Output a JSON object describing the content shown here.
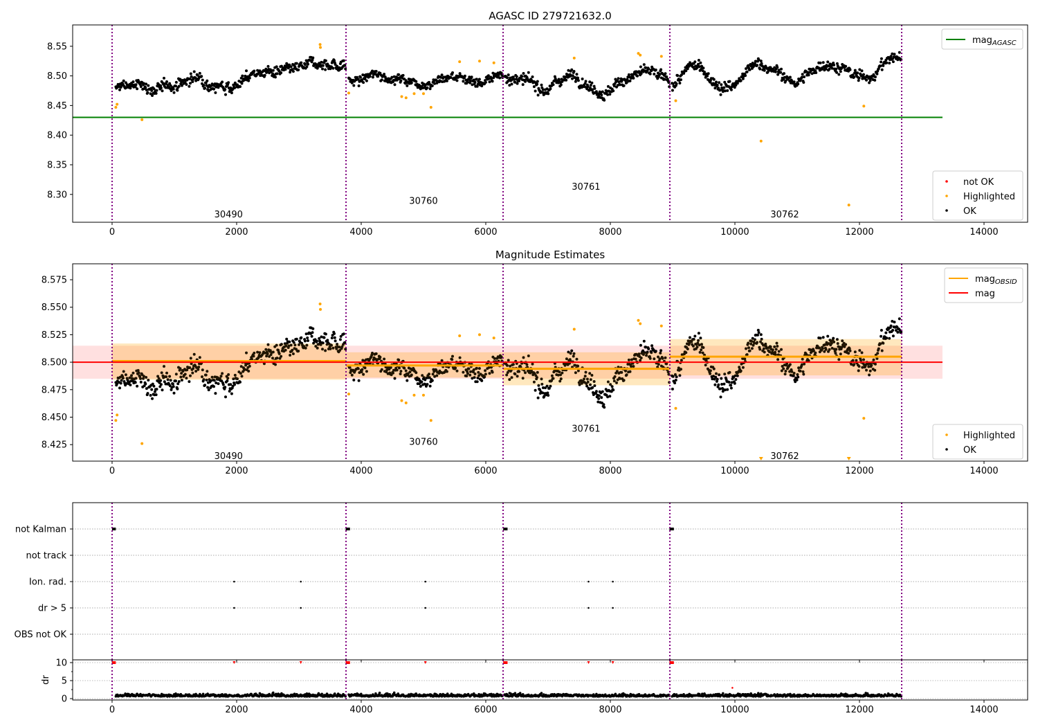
{
  "chart_data": [
    {
      "type": "scatter",
      "title": "AGASC ID 279721632.0",
      "xlim": [
        -633,
        14700
      ],
      "ylim": [
        8.253,
        8.586
      ],
      "xticks": [
        0,
        2000,
        4000,
        6000,
        8000,
        10000,
        12000,
        14000
      ],
      "yticks": [
        8.3,
        8.35,
        8.4,
        8.45,
        8.5,
        8.55
      ],
      "hlines": [
        {
          "name": "mag_AGASC",
          "y": 8.43,
          "x_end": 13333,
          "color": "#008000"
        }
      ],
      "legend_upper": [
        {
          "label": "mag",
          "sub": "AGASC",
          "color": "#008000",
          "kind": "line"
        }
      ],
      "legend_lower": [
        {
          "label": "not OK",
          "color": "#ff0000",
          "kind": "dot"
        },
        {
          "label": "Highlighted",
          "color": "#ffa500",
          "kind": "dot"
        },
        {
          "label": "OK",
          "color": "#000000",
          "kind": "dot"
        }
      ],
      "obsid_labels": [
        {
          "text": "30490",
          "x": 1870,
          "y": 8.267
        },
        {
          "text": "30760",
          "x": 5000,
          "y": 8.29
        },
        {
          "text": "30761",
          "x": 7610,
          "y": 8.314
        },
        {
          "text": "30762",
          "x": 10800,
          "y": 8.267
        }
      ]
    },
    {
      "type": "scatter",
      "title": "Magnitude Estimates",
      "xlim": [
        -633,
        14700
      ],
      "ylim": [
        8.41,
        8.5895
      ],
      "xticks": [
        0,
        2000,
        4000,
        6000,
        8000,
        10000,
        12000,
        14000
      ],
      "yticks": [
        8.425,
        8.45,
        8.475,
        8.5,
        8.525,
        8.55,
        8.575
      ],
      "mag": {
        "value": 8.5,
        "band": [
          8.485,
          8.515
        ],
        "x_end": 13333,
        "color": "#ff0000"
      },
      "mag_obsid": [
        {
          "x": [
            0,
            3756
          ],
          "value": 8.501,
          "band": [
            8.484,
            8.517
          ]
        },
        {
          "x": [
            3756,
            6278
          ],
          "value": 8.497,
          "band": [
            8.486,
            8.509
          ]
        },
        {
          "x": [
            6278,
            8956
          ],
          "value": 8.494,
          "band": [
            8.479,
            8.509
          ]
        },
        {
          "x": [
            8956,
            12678
          ],
          "value": 8.505,
          "band": [
            8.488,
            8.521
          ]
        }
      ],
      "legend_upper": [
        {
          "label": "mag",
          "sub": "OBSID",
          "color": "#ffa500",
          "kind": "line"
        },
        {
          "label": "mag",
          "sub": "",
          "color": "#ff0000",
          "kind": "line"
        }
      ],
      "legend_lower": [
        {
          "label": "Highlighted",
          "color": "#ffa500",
          "kind": "dot"
        },
        {
          "label": "OK",
          "color": "#000000",
          "kind": "dot"
        }
      ],
      "obsid_labels": [
        {
          "text": "30490",
          "x": 1870,
          "y": 8.415
        },
        {
          "text": "30760",
          "x": 5000,
          "y": 8.428
        },
        {
          "text": "30761",
          "x": 7610,
          "y": 8.44
        },
        {
          "text": "30762",
          "x": 10800,
          "y": 8.415
        }
      ]
    },
    {
      "type": "scatter",
      "title": "",
      "flag_rows": [
        "not Kalman",
        "not track",
        "Ion. rad.",
        "dr > 5",
        "OBS not OK"
      ],
      "flags": {
        "not Kalman": [
          [
            0,
            60
          ],
          [
            3750,
            3820
          ],
          [
            6280,
            6350
          ],
          [
            8950,
            9020
          ]
        ],
        "Ion. rad.": [
          1960,
          3030,
          5030,
          7650,
          8040
        ],
        "dr > 5": [
          1960,
          3030,
          5030,
          7650,
          8040
        ]
      },
      "xlim": [
        -633,
        14700
      ],
      "xticks": [
        0,
        2000,
        4000,
        6000,
        8000,
        10000,
        12000,
        14000
      ]
    },
    {
      "type": "scatter",
      "ylabel": "dr",
      "ylim": [
        -0.38,
        10.77
      ],
      "yticks": [
        0,
        5,
        10
      ],
      "xlim": [
        -633,
        14700
      ],
      "xticks": [
        0,
        2000,
        4000,
        6000,
        8000,
        10000,
        12000,
        14000
      ],
      "dr_typical": [
        0,
        2
      ],
      "dr_clipped_value": 10,
      "dr_red_points": [
        [
          9960,
          3
        ]
      ]
    }
  ],
  "obsid_boundaries": [
    0,
    3756,
    6278,
    8956,
    12678
  ],
  "ok_series": {
    "segments": [
      {
        "x": [
          60,
          3756
        ],
        "start": 8.475,
        "end": 8.518,
        "amp": 0.006,
        "noise": 0.007
      },
      {
        "x": [
          3800,
          6278
        ],
        "start": 8.495,
        "end": 8.5,
        "amp": 0.004,
        "noise": 0.006
      },
      {
        "x": [
          6300,
          8956
        ],
        "start": 8.488,
        "end": 8.497,
        "amp": 0.012,
        "noise": 0.007
      },
      {
        "x": [
          8990,
          12678
        ],
        "start": 8.492,
        "end": 8.515,
        "amp": 0.016,
        "noise": 0.007
      }
    ],
    "count": 1400
  },
  "highlighted_points": [
    [
      60,
      8.447
    ],
    [
      80,
      8.452
    ],
    [
      480,
      8.426
    ],
    [
      3340,
      8.553
    ],
    [
      3345,
      8.548
    ],
    [
      3800,
      8.471
    ],
    [
      4650,
      8.465
    ],
    [
      4720,
      8.463
    ],
    [
      4850,
      8.47
    ],
    [
      5000,
      8.47
    ],
    [
      5120,
      8.447
    ],
    [
      5580,
      8.524
    ],
    [
      5900,
      8.525
    ],
    [
      6130,
      8.522
    ],
    [
      7420,
      8.53
    ],
    [
      8450,
      8.538
    ],
    [
      8480,
      8.535
    ],
    [
      8820,
      8.533
    ],
    [
      9050,
      8.458
    ],
    [
      10420,
      8.39
    ],
    [
      11830,
      8.282
    ],
    [
      12070,
      8.449
    ]
  ]
}
